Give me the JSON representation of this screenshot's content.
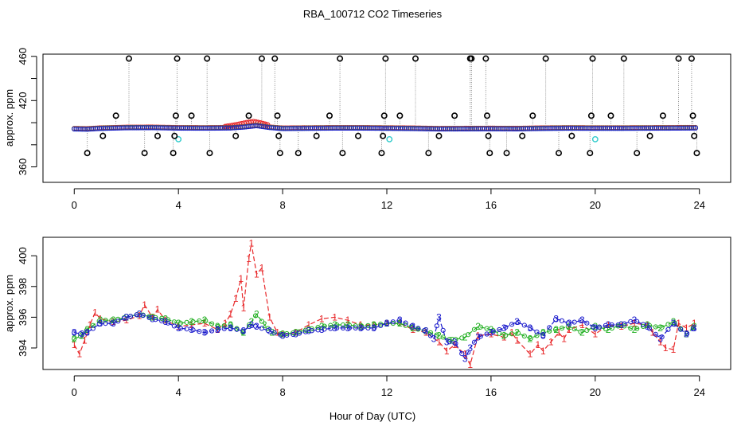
{
  "chart_data": {
    "title": "RBA_100712  CO2 Timeseries",
    "xlabel": "Hour of Day (UTC)",
    "colors": {
      "series1": "#e8282a",
      "series2": "#22b022",
      "series3": "#1a1acc",
      "flag": "#000000",
      "cyan": "#33cccc",
      "connector": "#888888"
    },
    "top": {
      "type": "scatter",
      "ylabel": "approx. ppm",
      "xlim": [
        -1.2,
        25.2
      ],
      "ylim": [
        346,
        462
      ],
      "xticks": [
        "0",
        "4",
        "8",
        "12",
        "16",
        "20",
        "24"
      ],
      "xtick_values": [
        0,
        4,
        8,
        12,
        16,
        20,
        24
      ],
      "yticks": [
        "360",
        "380",
        "400",
        "420",
        "440",
        "460"
      ],
      "ytick_values": [
        360,
        380,
        400,
        420,
        440,
        460
      ],
      "ytick_shown": [
        true,
        false,
        false,
        true,
        false,
        true
      ],
      "baseline": [
        [
          0.0,
          394.5
        ],
        [
          0.5,
          394.3
        ],
        [
          1.0,
          395.0
        ],
        [
          2.0,
          395.6
        ],
        [
          3.0,
          395.7
        ],
        [
          4.0,
          395.3
        ],
        [
          5.0,
          395.2
        ],
        [
          6.0,
          395.4
        ],
        [
          6.5,
          396.2
        ],
        [
          7.0,
          397.5
        ],
        [
          7.5,
          395.8
        ],
        [
          8.0,
          394.9
        ],
        [
          9.0,
          395.1
        ],
        [
          10.0,
          395.3
        ],
        [
          11.0,
          395.3
        ],
        [
          12.0,
          395.1
        ],
        [
          13.0,
          394.9
        ],
        [
          14.0,
          394.5
        ],
        [
          15.0,
          394.6
        ],
        [
          16.0,
          394.7
        ],
        [
          17.0,
          394.6
        ],
        [
          18.0,
          395.0
        ],
        [
          19.0,
          395.2
        ],
        [
          20.0,
          395.1
        ],
        [
          21.0,
          395.1
        ],
        [
          22.0,
          395.2
        ],
        [
          23.0,
          395.3
        ],
        [
          23.8,
          395.4
        ]
      ],
      "bump": [
        [
          5.8,
          396.5
        ],
        [
          6.2,
          398.0
        ],
        [
          6.6,
          400.0
        ],
        [
          6.9,
          401.0
        ],
        [
          7.2,
          399.5
        ],
        [
          7.5,
          397.5
        ]
      ],
      "flag_points": [
        [
          0.5,
          372.5
        ],
        [
          1.1,
          388.0
        ],
        [
          1.6,
          406.3
        ],
        [
          2.1,
          458.0
        ],
        [
          2.7,
          372.5
        ],
        [
          3.2,
          388.0
        ],
        [
          3.8,
          372.5
        ],
        [
          3.85,
          388.0
        ],
        [
          3.9,
          406.3
        ],
        [
          3.95,
          458.0
        ],
        [
          4.5,
          406.3
        ],
        [
          5.1,
          458.0
        ],
        [
          5.2,
          372.5
        ],
        [
          6.2,
          388.0
        ],
        [
          6.7,
          406.3
        ],
        [
          7.2,
          458.0
        ],
        [
          7.7,
          458.0
        ],
        [
          7.8,
          406.3
        ],
        [
          7.85,
          388.0
        ],
        [
          7.9,
          372.5
        ],
        [
          8.6,
          372.5
        ],
        [
          9.3,
          388.0
        ],
        [
          9.8,
          406.3
        ],
        [
          10.3,
          372.5
        ],
        [
          10.2,
          458.0
        ],
        [
          10.9,
          388.0
        ],
        [
          11.8,
          372.5
        ],
        [
          11.85,
          388.0
        ],
        [
          11.9,
          406.3
        ],
        [
          11.95,
          458.0
        ],
        [
          12.5,
          406.3
        ],
        [
          13.1,
          458.0
        ],
        [
          13.6,
          372.5
        ],
        [
          14.0,
          388.0
        ],
        [
          14.6,
          406.3
        ],
        [
          15.2,
          458.0
        ],
        [
          15.25,
          458.0
        ],
        [
          15.8,
          458.0
        ],
        [
          15.85,
          406.3
        ],
        [
          15.9,
          388.0
        ],
        [
          15.95,
          372.5
        ],
        [
          16.6,
          372.5
        ],
        [
          17.2,
          388.0
        ],
        [
          17.6,
          406.3
        ],
        [
          18.1,
          458.0
        ],
        [
          18.6,
          372.5
        ],
        [
          19.1,
          388.0
        ],
        [
          19.8,
          372.5
        ],
        [
          19.85,
          406.3
        ],
        [
          19.9,
          458.0
        ],
        [
          20.6,
          406.3
        ],
        [
          21.1,
          458.0
        ],
        [
          21.6,
          372.5
        ],
        [
          22.1,
          388.0
        ],
        [
          22.6,
          406.3
        ],
        [
          23.2,
          458.0
        ],
        [
          23.7,
          458.0
        ],
        [
          23.75,
          406.3
        ],
        [
          23.8,
          388.0
        ],
        [
          23.9,
          372.5
        ]
      ],
      "cyan_points": [
        [
          4.0,
          385.0
        ],
        [
          12.1,
          385.0
        ],
        [
          20.0,
          385.0
        ]
      ]
    },
    "bottom": {
      "type": "line",
      "ylabel": "approx. ppm",
      "xlim": [
        -1.2,
        25.2
      ],
      "ylim": [
        392.6,
        401.2
      ],
      "xticks": [
        "0",
        "4",
        "8",
        "12",
        "16",
        "20",
        "24"
      ],
      "xtick_values": [
        0,
        4,
        8,
        12,
        16,
        20,
        24
      ],
      "yticks": [
        "394",
        "396",
        "398",
        "400"
      ],
      "ytick_values": [
        394,
        396,
        398,
        400
      ],
      "series": [
        {
          "name": "1",
          "label": "1",
          "values": [
            [
              0.0,
              394.2
            ],
            [
              0.2,
              393.6
            ],
            [
              0.4,
              394.5
            ],
            [
              0.6,
              395.5
            ],
            [
              0.8,
              396.3
            ],
            [
              1.0,
              395.9
            ],
            [
              1.5,
              395.7
            ],
            [
              2.0,
              395.8
            ],
            [
              2.5,
              396.1
            ],
            [
              2.7,
              396.8
            ],
            [
              3.0,
              396.0
            ],
            [
              3.2,
              396.5
            ],
            [
              3.5,
              395.8
            ],
            [
              4.0,
              395.4
            ],
            [
              4.5,
              395.5
            ],
            [
              5.0,
              395.6
            ],
            [
              5.5,
              395.2
            ],
            [
              5.8,
              395.6
            ],
            [
              6.0,
              396.2
            ],
            [
              6.2,
              397.2
            ],
            [
              6.4,
              398.5
            ],
            [
              6.5,
              396.6
            ],
            [
              6.7,
              399.8
            ],
            [
              6.8,
              400.8
            ],
            [
              7.0,
              398.8
            ],
            [
              7.2,
              399.2
            ],
            [
              7.5,
              396.0
            ],
            [
              7.8,
              395.0
            ],
            [
              8.0,
              394.9
            ],
            [
              8.5,
              395.0
            ],
            [
              9.0,
              395.5
            ],
            [
              9.5,
              395.9
            ],
            [
              10.0,
              396.0
            ],
            [
              10.5,
              395.8
            ],
            [
              11.0,
              395.5
            ],
            [
              11.5,
              395.5
            ],
            [
              12.0,
              395.6
            ],
            [
              12.5,
              395.6
            ],
            [
              13.0,
              395.2
            ],
            [
              13.5,
              395.0
            ],
            [
              14.0,
              394.4
            ],
            [
              14.3,
              393.8
            ],
            [
              14.6,
              394.2
            ],
            [
              15.0,
              393.6
            ],
            [
              15.2,
              392.9
            ],
            [
              15.5,
              394.8
            ],
            [
              16.0,
              394.9
            ],
            [
              16.5,
              394.7
            ],
            [
              16.8,
              395.0
            ],
            [
              17.0,
              394.5
            ],
            [
              17.5,
              393.6
            ],
            [
              17.8,
              394.2
            ],
            [
              18.0,
              393.8
            ],
            [
              18.3,
              394.4
            ],
            [
              18.6,
              395.0
            ],
            [
              18.8,
              394.6
            ],
            [
              19.0,
              395.2
            ],
            [
              19.5,
              395.5
            ],
            [
              20.0,
              394.9
            ],
            [
              20.5,
              395.5
            ],
            [
              21.0,
              395.4
            ],
            [
              21.5,
              395.6
            ],
            [
              22.0,
              395.5
            ],
            [
              22.2,
              395.0
            ],
            [
              22.5,
              394.4
            ],
            [
              22.7,
              394.0
            ],
            [
              23.0,
              393.9
            ],
            [
              23.2,
              395.6
            ],
            [
              23.5,
              395.3
            ],
            [
              23.8,
              395.6
            ]
          ]
        },
        {
          "name": "2",
          "label": "2",
          "values": [
            [
              0.0,
              394.6
            ],
            [
              0.3,
              394.8
            ],
            [
              0.5,
              395.2
            ],
            [
              1.0,
              395.8
            ],
            [
              1.5,
              395.8
            ],
            [
              2.0,
              396.0
            ],
            [
              2.5,
              396.2
            ],
            [
              3.0,
              396.0
            ],
            [
              3.5,
              395.9
            ],
            [
              4.0,
              395.6
            ],
            [
              4.5,
              395.7
            ],
            [
              5.0,
              395.8
            ],
            [
              5.5,
              395.4
            ],
            [
              6.0,
              395.5
            ],
            [
              6.5,
              395.0
            ],
            [
              6.8,
              395.7
            ],
            [
              7.0,
              396.2
            ],
            [
              7.3,
              395.5
            ],
            [
              7.6,
              395.0
            ],
            [
              8.0,
              394.9
            ],
            [
              8.5,
              395.0
            ],
            [
              9.0,
              395.2
            ],
            [
              9.5,
              395.4
            ],
            [
              10.0,
              395.5
            ],
            [
              10.5,
              395.5
            ],
            [
              11.0,
              395.4
            ],
            [
              11.5,
              395.5
            ],
            [
              12.0,
              395.6
            ],
            [
              12.5,
              395.6
            ],
            [
              13.0,
              395.3
            ],
            [
              13.5,
              395.1
            ],
            [
              14.0,
              394.8
            ],
            [
              14.5,
              394.5
            ],
            [
              15.0,
              394.7
            ],
            [
              15.5,
              395.4
            ],
            [
              16.0,
              395.2
            ],
            [
              16.5,
              394.8
            ],
            [
              17.0,
              395.0
            ],
            [
              17.5,
              394.6
            ],
            [
              18.0,
              395.0
            ],
            [
              18.5,
              395.2
            ],
            [
              19.0,
              395.4
            ],
            [
              19.5,
              395.0
            ],
            [
              20.0,
              395.4
            ],
            [
              20.5,
              395.2
            ],
            [
              21.0,
              395.5
            ],
            [
              21.5,
              395.2
            ],
            [
              22.0,
              395.5
            ],
            [
              22.5,
              395.3
            ],
            [
              23.0,
              395.7
            ],
            [
              23.5,
              394.9
            ],
            [
              23.8,
              395.4
            ]
          ]
        },
        {
          "name": "3",
          "label": "3",
          "values": [
            [
              0.0,
              395.0
            ],
            [
              0.3,
              394.9
            ],
            [
              0.5,
              395.0
            ],
            [
              1.0,
              395.6
            ],
            [
              1.5,
              395.6
            ],
            [
              2.0,
              396.0
            ],
            [
              2.5,
              396.2
            ],
            [
              3.0,
              395.9
            ],
            [
              3.5,
              395.7
            ],
            [
              4.0,
              395.3
            ],
            [
              4.5,
              395.2
            ],
            [
              5.0,
              395.0
            ],
            [
              5.5,
              395.2
            ],
            [
              6.0,
              395.3
            ],
            [
              6.5,
              395.1
            ],
            [
              6.8,
              395.5
            ],
            [
              7.0,
              395.4
            ],
            [
              7.5,
              395.1
            ],
            [
              8.0,
              394.8
            ],
            [
              8.5,
              394.9
            ],
            [
              9.0,
              395.1
            ],
            [
              9.5,
              395.2
            ],
            [
              10.0,
              395.3
            ],
            [
              10.5,
              395.3
            ],
            [
              11.0,
              395.3
            ],
            [
              11.5,
              395.3
            ],
            [
              12.0,
              395.6
            ],
            [
              12.5,
              395.8
            ],
            [
              13.0,
              395.4
            ],
            [
              13.5,
              395.1
            ],
            [
              13.8,
              394.6
            ],
            [
              14.0,
              396.0
            ],
            [
              14.3,
              394.4
            ],
            [
              14.6,
              394.4
            ],
            [
              15.0,
              393.3
            ],
            [
              15.2,
              394.0
            ],
            [
              15.5,
              394.7
            ],
            [
              16.0,
              395.0
            ],
            [
              16.5,
              395.3
            ],
            [
              17.0,
              395.7
            ],
            [
              17.5,
              395.3
            ],
            [
              18.0,
              394.8
            ],
            [
              18.5,
              395.9
            ],
            [
              19.0,
              395.6
            ],
            [
              19.5,
              395.8
            ],
            [
              20.0,
              395.3
            ],
            [
              20.5,
              395.5
            ],
            [
              21.0,
              395.5
            ],
            [
              21.5,
              395.8
            ],
            [
              22.0,
              395.4
            ],
            [
              22.5,
              394.6
            ],
            [
              23.0,
              395.6
            ],
            [
              23.5,
              394.9
            ],
            [
              23.8,
              395.3
            ]
          ]
        }
      ]
    }
  }
}
